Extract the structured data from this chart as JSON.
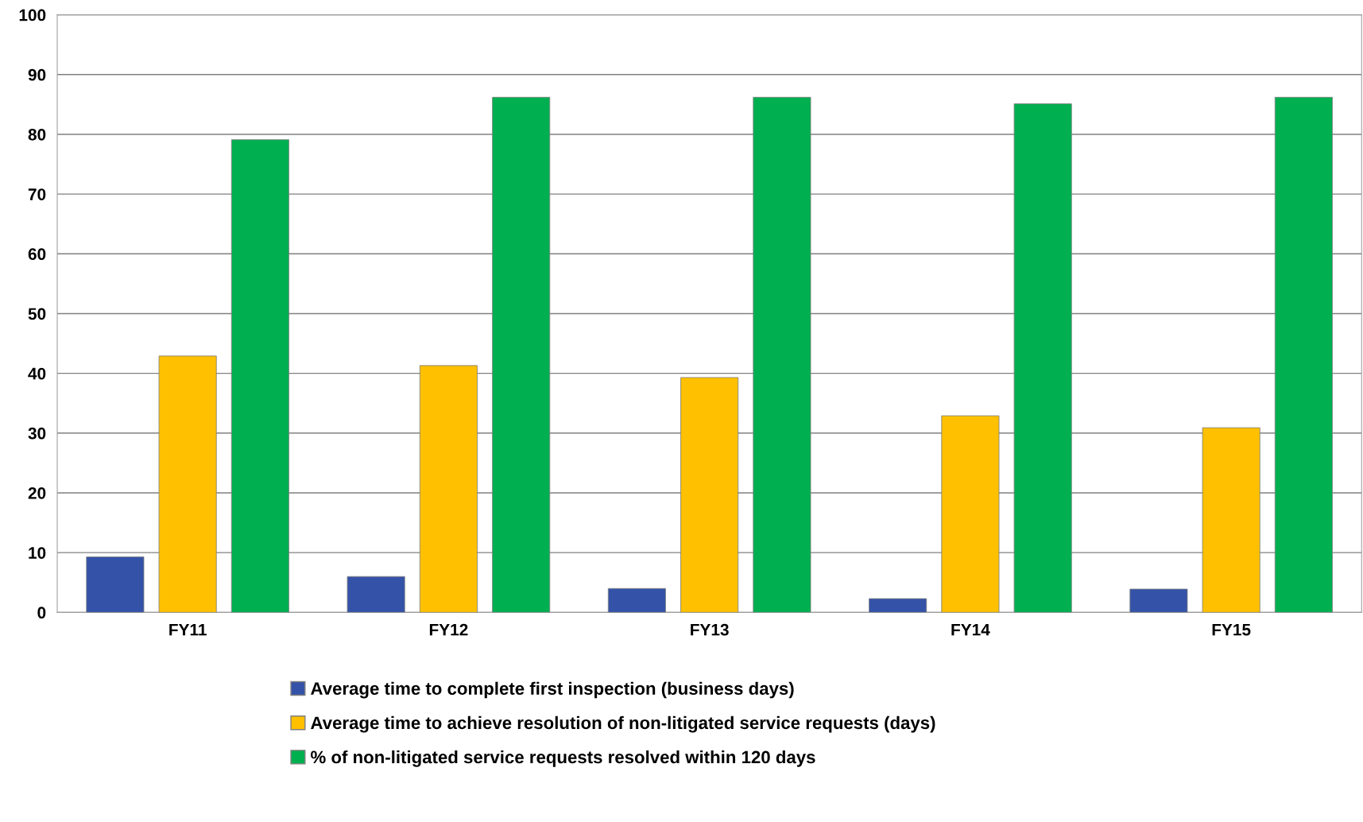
{
  "chart_data": {
    "type": "bar",
    "categories": [
      "FY11",
      "FY12",
      "FY13",
      "FY14",
      "FY15"
    ],
    "series": [
      {
        "name": "Average time to complete first inspection (business days)",
        "color": "#3453a8",
        "values": [
          9.3,
          6.0,
          4.0,
          2.3,
          3.9
        ]
      },
      {
        "name": "Average time to achieve resolution of non-litigated service requests (days)",
        "color": "#ffc000",
        "values": [
          42.9,
          41.3,
          39.3,
          32.9,
          30.9
        ]
      },
      {
        "name": "% of non-litigated service requests resolved within 120 days",
        "color": "#00b050",
        "values": [
          79.1,
          86.2,
          86.2,
          85.1,
          86.2
        ]
      }
    ],
    "ylim": [
      0,
      100
    ],
    "yticks": [
      0,
      10,
      20,
      30,
      40,
      50,
      60,
      70,
      80,
      90,
      100
    ],
    "grid": "y",
    "legend": "bottom"
  }
}
